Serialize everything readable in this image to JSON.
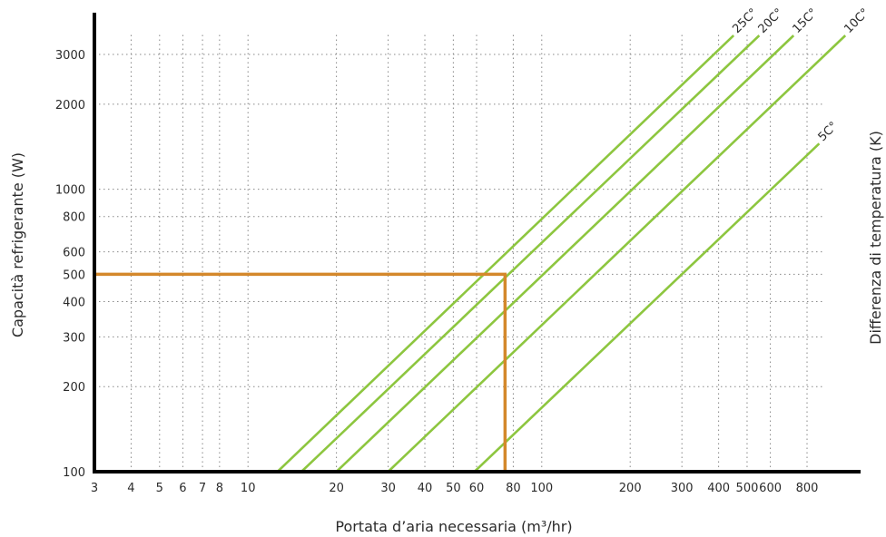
{
  "chart_data": {
    "type": "line",
    "xlabel": "Portata d’aria necessaria  (m³/hr)",
    "ylabel": "Capacità refrigerante (W)",
    "y2label": "Differenza di temperatura (K)",
    "x_scale": "log",
    "y_scale": "log",
    "xlim": [
      3,
      1200
    ],
    "ylim": [
      100,
      3800
    ],
    "grid": true,
    "x_ticks": [
      3,
      4,
      5,
      6,
      7,
      8,
      10,
      20,
      30,
      40,
      50,
      60,
      80,
      100,
      200,
      300,
      400,
      500,
      600,
      800
    ],
    "x_tick_labels": [
      "3",
      "4",
      "5",
      "6",
      "7",
      "8",
      "10",
      "20",
      "30",
      "40",
      "50",
      "60",
      "80",
      "100",
      "200",
      "300",
      "400",
      "500",
      "600",
      "800"
    ],
    "y_ticks": [
      100,
      200,
      300,
      400,
      500,
      600,
      800,
      1000,
      2000,
      3000
    ],
    "y_tick_labels": [
      "100",
      "200",
      "300",
      "400",
      "500",
      "600",
      "800",
      "1000",
      "2000",
      "3000"
    ],
    "series": [
      {
        "name": "25C°",
        "color": "#8dc63f",
        "points": [
          [
            12.6,
            100
          ],
          [
            450,
            3500
          ]
        ]
      },
      {
        "name": "20C°",
        "color": "#8dc63f",
        "points": [
          [
            15.2,
            100
          ],
          [
            550,
            3500
          ]
        ]
      },
      {
        "name": "15C°",
        "color": "#8dc63f",
        "points": [
          [
            20,
            100
          ],
          [
            720,
            3500
          ]
        ]
      },
      {
        "name": "10C°",
        "color": "#8dc63f",
        "points": [
          [
            30,
            100
          ],
          [
            1080,
            3500
          ]
        ]
      },
      {
        "name": "5C°",
        "color": "#8dc63f",
        "points": [
          [
            59,
            100
          ],
          [
            880,
            1450
          ]
        ]
      }
    ],
    "annotations": [
      {
        "type": "reference-line",
        "color": "#d4882b",
        "points": [
          [
            3,
            500
          ],
          [
            75,
            500
          ],
          [
            75,
            100
          ]
        ]
      }
    ]
  }
}
